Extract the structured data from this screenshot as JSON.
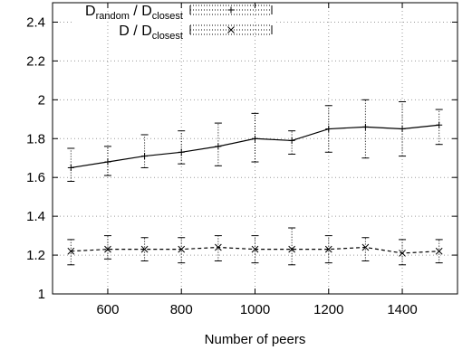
{
  "chart_data": {
    "type": "line",
    "xlabel": "Number of peers",
    "ylabel": "",
    "xlim": [
      450,
      1550
    ],
    "ylim": [
      1,
      2.5
    ],
    "x_ticks": [
      600,
      800,
      1000,
      1200,
      1400
    ],
    "y_ticks": [
      1,
      1.2,
      1.4,
      1.6,
      1.8,
      2,
      2.2,
      2.4
    ],
    "x_tick_labels": [
      "600",
      "800",
      "1000",
      "1200",
      "1400"
    ],
    "y_tick_labels": [
      "1",
      "1.2",
      "1.4",
      "1.6",
      "1.8",
      "2",
      "2.2",
      "2.4"
    ],
    "grid": true,
    "legend_position": "top-right",
    "x": [
      500,
      600,
      700,
      800,
      900,
      1000,
      1100,
      1200,
      1300,
      1400,
      1500
    ],
    "series": [
      {
        "name": "D_random / D_closest",
        "legend": {
          "main": "D",
          "sub": "random",
          "mid": " / D",
          "sub2": "closest"
        },
        "marker": "plus",
        "line_style": "solid",
        "values": [
          1.65,
          1.68,
          1.71,
          1.73,
          1.76,
          1.8,
          1.79,
          1.85,
          1.86,
          1.85,
          1.87
        ],
        "err_low": [
          1.58,
          1.61,
          1.65,
          1.67,
          1.66,
          1.68,
          1.72,
          1.73,
          1.7,
          1.71,
          1.77
        ],
        "err_high": [
          1.75,
          1.76,
          1.82,
          1.84,
          1.88,
          1.93,
          1.84,
          1.97,
          2.0,
          1.99,
          1.95
        ]
      },
      {
        "name": "D / D_closest",
        "legend": {
          "main": "D / D",
          "sub": "",
          "mid": "",
          "sub2": "closest"
        },
        "marker": "x",
        "line_style": "dashed",
        "values": [
          1.22,
          1.23,
          1.23,
          1.23,
          1.24,
          1.23,
          1.23,
          1.23,
          1.24,
          1.21,
          1.22
        ],
        "err_low": [
          1.15,
          1.18,
          1.17,
          1.16,
          1.17,
          1.16,
          1.15,
          1.16,
          1.17,
          1.15,
          1.16
        ],
        "err_high": [
          1.28,
          1.3,
          1.29,
          1.29,
          1.3,
          1.3,
          1.34,
          1.3,
          1.29,
          1.28,
          1.28
        ]
      }
    ]
  }
}
